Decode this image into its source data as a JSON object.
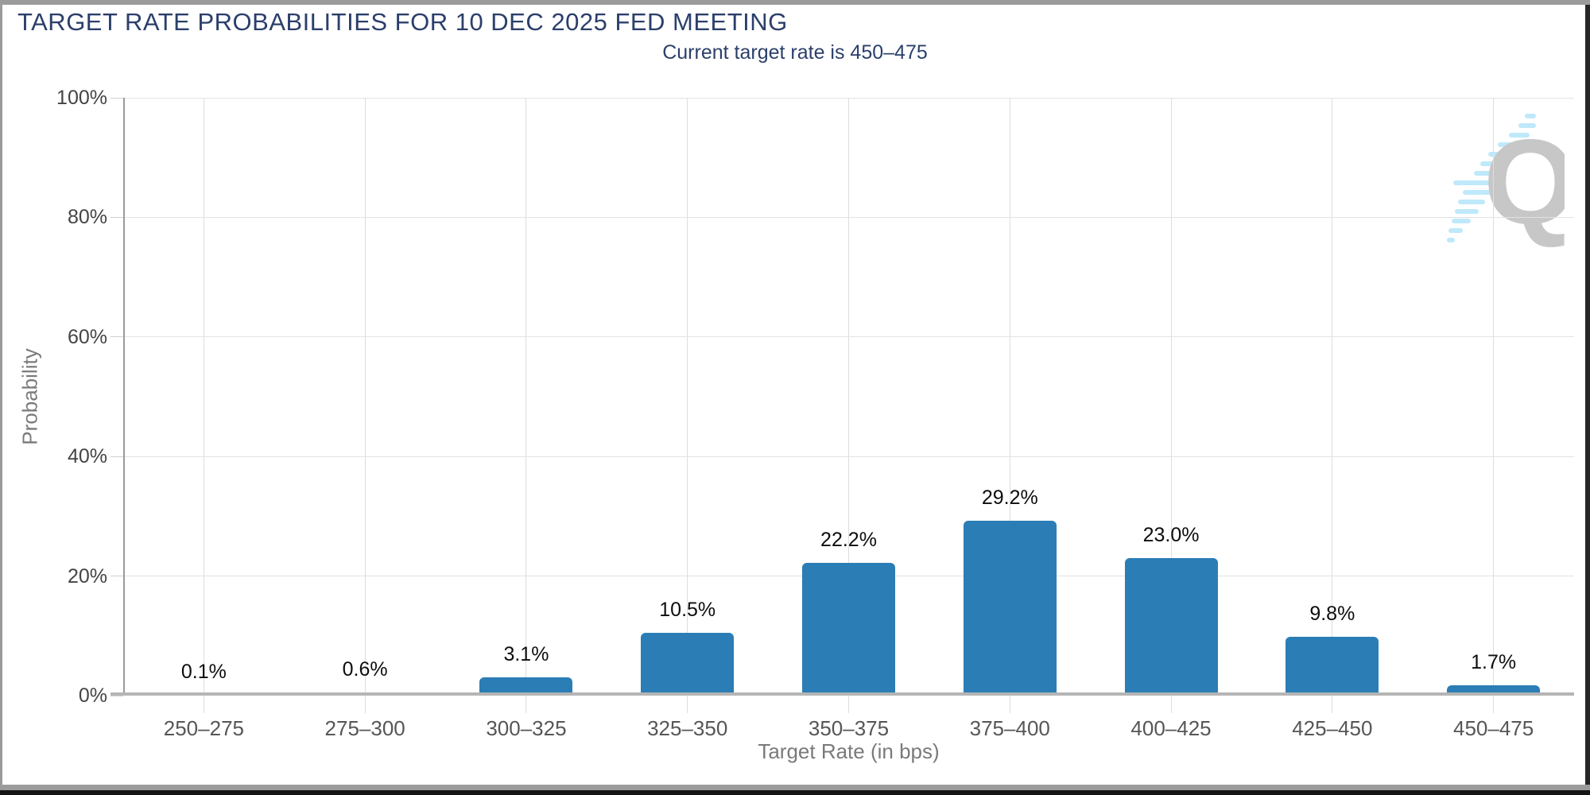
{
  "header": {
    "title": "TARGET RATE PROBABILITIES FOR 10 DEC 2025 FED MEETING",
    "subtitle": "Current target rate is 450–475"
  },
  "chart_data": {
    "type": "bar",
    "title": "TARGET RATE PROBABILITIES FOR 10 DEC 2025 FED MEETING",
    "subtitle": "Current target rate is 450–475",
    "xlabel": "Target Rate (in bps)",
    "ylabel": "Probability",
    "categories": [
      "250–275",
      "275–300",
      "300–325",
      "325–350",
      "350–375",
      "375–400",
      "400–425",
      "425–450",
      "450–475"
    ],
    "values": [
      0.1,
      0.6,
      3.1,
      10.5,
      22.2,
      29.2,
      23.0,
      9.8,
      1.7
    ],
    "value_labels": [
      "0.1%",
      "0.6%",
      "3.1%",
      "10.5%",
      "22.2%",
      "29.2%",
      "23.0%",
      "9.8%",
      "1.7%"
    ],
    "ylim": [
      0,
      100
    ],
    "ytick_labels": [
      "0%",
      "20%",
      "40%",
      "60%",
      "80%",
      "100%"
    ],
    "grid": true,
    "legend_position": "none",
    "bar_color": "#2b7db5",
    "title_color": "#2b3f6b",
    "watermark_letter": "Q"
  }
}
